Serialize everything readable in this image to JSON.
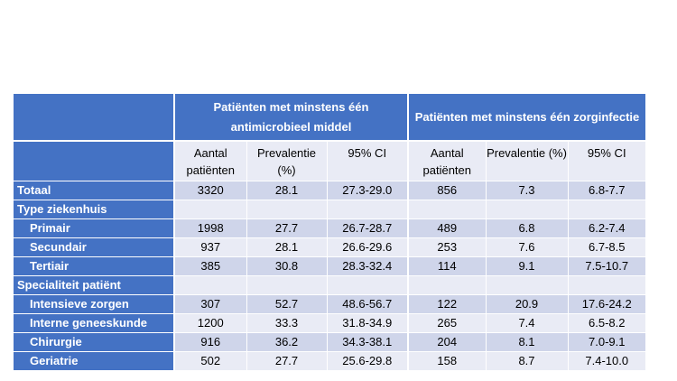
{
  "header": {
    "group1": "Patiënten met minstens één antimicrobieel middel",
    "group2": "Patiënten met minstens één zorginfectie"
  },
  "subheaders": [
    "Aantal patiënten",
    "Prevalentie (%)",
    "95% CI",
    "Aantal patiënten",
    "Prevalentie (%)",
    "95% CI"
  ],
  "rows": [
    {
      "label": "Totaal",
      "indent": false,
      "values": [
        "3320",
        "28.1",
        "27.3-29.0",
        "856",
        "7.3",
        "6.8-7.7"
      ]
    },
    {
      "label": "Type ziekenhuis",
      "indent": false,
      "values": [
        "",
        "",
        "",
        "",
        "",
        ""
      ]
    },
    {
      "label": "Primair",
      "indent": true,
      "values": [
        "1998",
        "27.7",
        "26.7-28.7",
        "489",
        "6.8",
        "6.2-7.4"
      ]
    },
    {
      "label": "Secundair",
      "indent": true,
      "values": [
        "937",
        "28.1",
        "26.6-29.6",
        "253",
        "7.6",
        "6.7-8.5"
      ]
    },
    {
      "label": "Tertiair",
      "indent": true,
      "values": [
        "385",
        "30.8",
        "28.3-32.4",
        "114",
        "9.1",
        "7.5-10.7"
      ]
    },
    {
      "label": "Specialiteit patiënt",
      "indent": false,
      "values": [
        "",
        "",
        "",
        "",
        "",
        ""
      ]
    },
    {
      "label": "Intensieve zorgen",
      "indent": true,
      "values": [
        "307",
        "52.7",
        "48.6-56.7",
        "122",
        "20.9",
        "17.6-24.2"
      ]
    },
    {
      "label": "Interne geneeskunde",
      "indent": true,
      "values": [
        "1200",
        "33.3",
        "31.8-34.9",
        "265",
        "7.4",
        "6.5-8.2"
      ]
    },
    {
      "label": "Chirurgie",
      "indent": true,
      "values": [
        "916",
        "36.2",
        "34.3-38.1",
        "204",
        "8.1",
        "7.0-9.1"
      ]
    },
    {
      "label": "Geriatrie",
      "indent": true,
      "values": [
        "502",
        "27.7",
        "25.6-29.8",
        "158",
        "8.7",
        "7.4-10.0"
      ]
    }
  ],
  "colors": {
    "header": "#4472c4",
    "row_light": "#e9ebf5",
    "row_mid": "#cfd5ea"
  }
}
